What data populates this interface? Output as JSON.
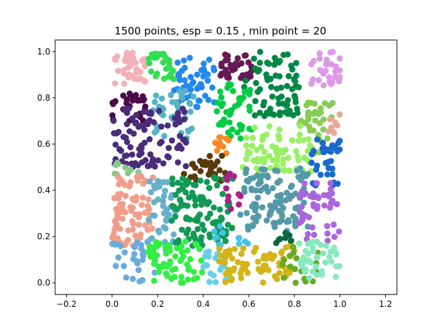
{
  "chart_data": {
    "type": "scatter",
    "title": "1500 points, esp = 0.15 , min point = 20",
    "xlabel": "",
    "ylabel": "",
    "xlim": [
      -0.25,
      1.25
    ],
    "ylim": [
      -0.05,
      1.05
    ],
    "xticks": [
      -0.2,
      0.0,
      0.2,
      0.4,
      0.6,
      0.8,
      1.0,
      1.2
    ],
    "xtick_labels": [
      "−0.2",
      "0.0",
      "0.2",
      "0.4",
      "0.6",
      "0.8",
      "1.0",
      "1.2"
    ],
    "yticks": [
      0.0,
      0.2,
      0.4,
      0.6,
      0.8,
      1.0
    ],
    "ytick_labels": [
      "0.0",
      "0.2",
      "0.4",
      "0.6",
      "0.8",
      "1.0"
    ],
    "grid": false,
    "legend": "none",
    "total_points": 1500,
    "clusters": [
      {
        "color": "#f4b0b8",
        "x": [
          0.01,
          0.15
        ],
        "y": [
          0.86,
          1.0
        ],
        "count": 40
      },
      {
        "color": "#33dd55",
        "x": [
          0.15,
          0.27
        ],
        "y": [
          0.88,
          1.0
        ],
        "count": 25
      },
      {
        "color": "#2288ee",
        "x": [
          0.27,
          0.45
        ],
        "y": [
          0.76,
          0.98
        ],
        "count": 50
      },
      {
        "color": "#661a55",
        "x": [
          0.45,
          0.62
        ],
        "y": [
          0.88,
          1.0
        ],
        "count": 35
      },
      {
        "color": "#008844",
        "x": [
          0.58,
          0.82
        ],
        "y": [
          0.72,
          1.0
        ],
        "count": 75
      },
      {
        "color": "#dd99e8",
        "x": [
          0.87,
          1.0
        ],
        "y": [
          0.85,
          1.0
        ],
        "count": 30
      },
      {
        "color": "#4a0a4a",
        "x": [
          0.0,
          0.16
        ],
        "y": [
          0.68,
          0.82
        ],
        "count": 30
      },
      {
        "color": "#55b2c8",
        "x": [
          0.17,
          0.36
        ],
        "y": [
          0.62,
          0.84
        ],
        "count": 40
      },
      {
        "color": "#00cc44",
        "x": [
          0.46,
          0.62
        ],
        "y": [
          0.62,
          0.86
        ],
        "count": 45
      },
      {
        "color": "#88cc55",
        "x": [
          0.82,
          0.97
        ],
        "y": [
          0.56,
          0.78
        ],
        "count": 35
      },
      {
        "color": "#e8a898",
        "x": [
          0.95,
          1.0
        ],
        "y": [
          0.62,
          0.74
        ],
        "count": 8
      },
      {
        "color": "#4a2d7a",
        "x": [
          0.0,
          0.33
        ],
        "y": [
          0.5,
          0.76
        ],
        "count": 90
      },
      {
        "color": "#99f066",
        "x": [
          0.57,
          0.88
        ],
        "y": [
          0.48,
          0.68
        ],
        "count": 70
      },
      {
        "color": "#1a6acc",
        "x": [
          0.87,
          1.0
        ],
        "y": [
          0.42,
          0.62
        ],
        "count": 35
      },
      {
        "color": "#ff8822",
        "x": [
          0.45,
          0.52
        ],
        "y": [
          0.56,
          0.64
        ],
        "count": 10
      },
      {
        "color": "#5a3a0a",
        "x": [
          0.31,
          0.5
        ],
        "y": [
          0.44,
          0.56
        ],
        "count": 30
      },
      {
        "color": "#88c888",
        "x": [
          0.0,
          0.12
        ],
        "y": [
          0.46,
          0.52
        ],
        "count": 10
      },
      {
        "color": "#f09e8a",
        "x": [
          0.0,
          0.18
        ],
        "y": [
          0.16,
          0.46
        ],
        "count": 80
      },
      {
        "color": "#66b0cc",
        "x": [
          0.16,
          0.28
        ],
        "y": [
          0.14,
          0.44
        ],
        "count": 40
      },
      {
        "color": "#119955",
        "x": [
          0.26,
          0.53
        ],
        "y": [
          0.16,
          0.46
        ],
        "count": 110
      },
      {
        "color": "#aa2288",
        "x": [
          0.5,
          0.57
        ],
        "y": [
          0.3,
          0.48
        ],
        "count": 12
      },
      {
        "color": "#5599a8",
        "x": [
          0.56,
          0.86
        ],
        "y": [
          0.22,
          0.5
        ],
        "count": 110
      },
      {
        "color": "#aa66dd",
        "x": [
          0.82,
          1.0
        ],
        "y": [
          0.18,
          0.44
        ],
        "count": 45
      },
      {
        "color": "#44c4e8",
        "x": [
          0.44,
          0.6
        ],
        "y": [
          0.16,
          0.26
        ],
        "count": 12
      },
      {
        "color": "#0a6640",
        "x": [
          0.72,
          0.79
        ],
        "y": [
          0.16,
          0.22
        ],
        "count": 8
      },
      {
        "color": "#6aaadd",
        "x": [
          0.0,
          0.2
        ],
        "y": [
          0.0,
          0.18
        ],
        "count": 30
      },
      {
        "color": "#33ee44",
        "x": [
          0.16,
          0.4
        ],
        "y": [
          0.0,
          0.18
        ],
        "count": 60
      },
      {
        "color": "#66d0ea",
        "x": [
          0.38,
          0.52
        ],
        "y": [
          0.0,
          0.14
        ],
        "count": 20
      },
      {
        "color": "#d4b418",
        "x": [
          0.47,
          0.8
        ],
        "y": [
          0.0,
          0.16
        ],
        "count": 70
      },
      {
        "color": "#66aa22",
        "x": [
          0.74,
          0.92
        ],
        "y": [
          0.0,
          0.16
        ],
        "count": 20
      },
      {
        "color": "#88e8c0",
        "x": [
          0.82,
          1.0
        ],
        "y": [
          0.02,
          0.18
        ],
        "count": 40
      }
    ]
  }
}
